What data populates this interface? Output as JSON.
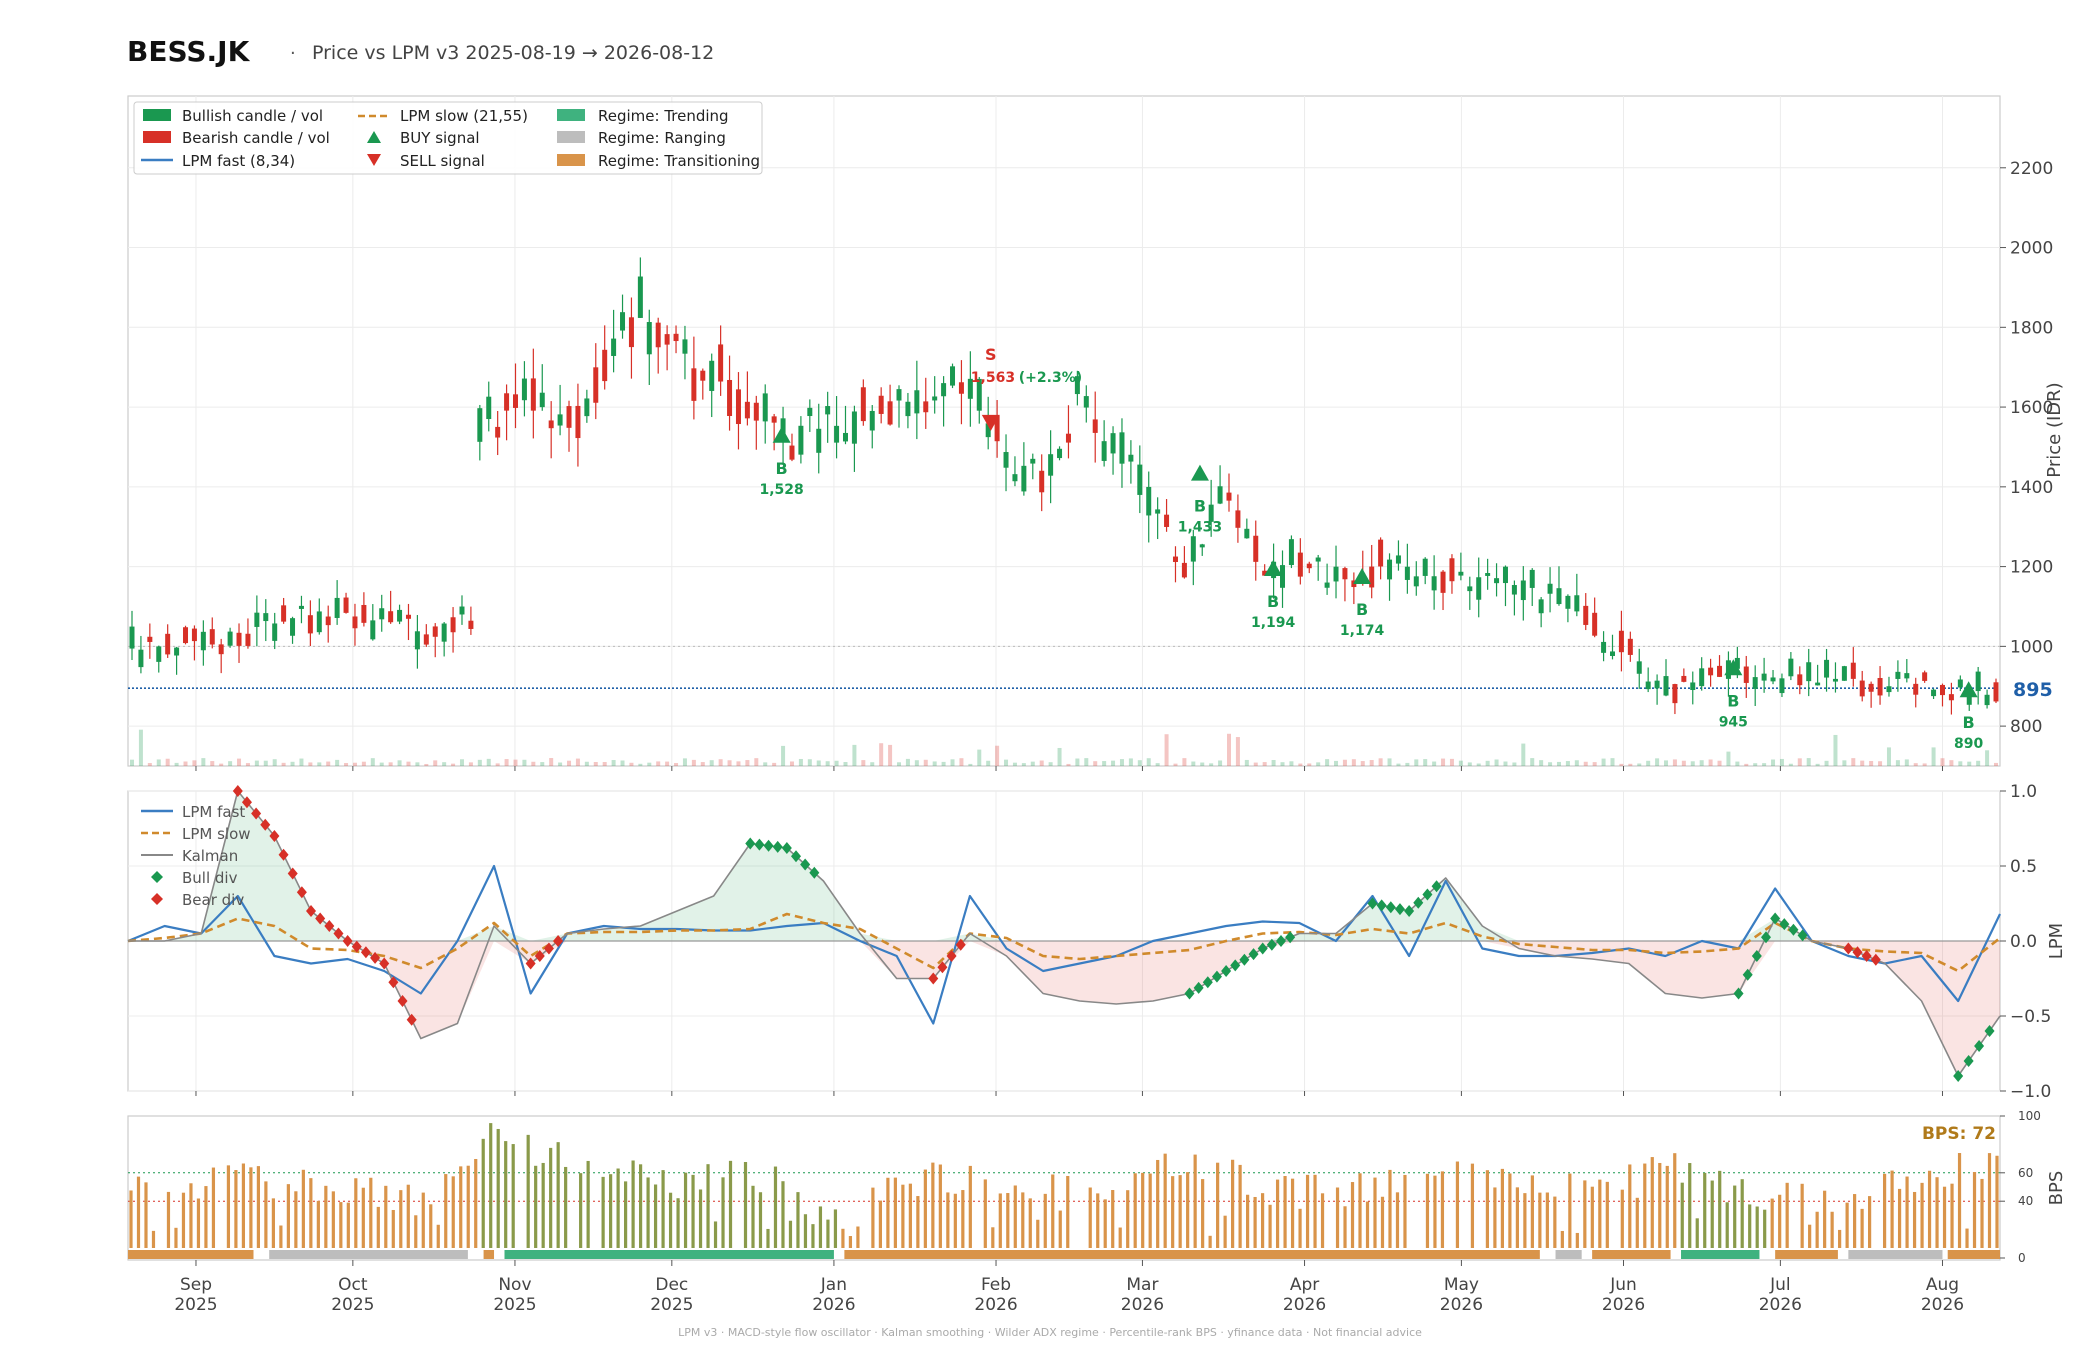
{
  "header": {
    "ticker": "BESS.JK",
    "separator": "·",
    "subtitle": "Price vs LPM v3  2025-08-19 → 2026-08-12"
  },
  "footer": {
    "text": "LPM v3  ·  MACD-style flow oscillator  ·  Kalman smoothing  ·  Wilder ADX regime  ·  Percentile-rank BPS  ·  yfinance data  ·  Not financial advice"
  },
  "colors": {
    "bullish": "#1a9850",
    "bearish": "#d73027",
    "lpm_fast": "#3a7dc2",
    "lpm_slow": "#d08a2c",
    "kalman": "#888888",
    "trending": "#3fb27f",
    "ranging": "#bdbdbd",
    "transitioning": "#d9944a",
    "bps_label": "#b07a1a",
    "last_price": "#1f5fa8"
  },
  "chart_data": [
    {
      "type": "candlestick",
      "panel": "price",
      "ylabel": "Price (IDR)",
      "ylim": [
        700,
        2380
      ],
      "yticks": [
        800,
        1000,
        1200,
        1400,
        1600,
        1800,
        2000,
        2200
      ],
      "last_price_label": "895",
      "last_price": 895,
      "reference_line": 1000,
      "legend": {
        "position": "top-left",
        "entries": [
          {
            "label": "Bullish candle / vol",
            "kind": "patch",
            "color": "#1a9850"
          },
          {
            "label": "Bearish candle / vol",
            "kind": "patch",
            "color": "#d73027"
          },
          {
            "label": "LPM fast (8,34)",
            "kind": "line",
            "color": "#3a7dc2"
          },
          {
            "label": "LPM slow (21,55)",
            "kind": "dashed",
            "color": "#d08a2c"
          },
          {
            "label": "BUY signal",
            "kind": "up",
            "color": "#1a9850"
          },
          {
            "label": "SELL signal",
            "kind": "down",
            "color": "#d73027"
          },
          {
            "label": "Regime: Trending",
            "kind": "patch",
            "color": "#3fb27f"
          },
          {
            "label": "Regime: Ranging",
            "kind": "patch",
            "color": "#bdbdbd"
          },
          {
            "label": "Regime: Transitioning",
            "kind": "patch",
            "color": "#d9944a"
          }
        ]
      },
      "signals": [
        {
          "type": "BUY",
          "date": "2025-12-22",
          "price": 1528,
          "letter": "B",
          "label": "1,528"
        },
        {
          "type": "SELL",
          "date": "2026-01-31",
          "price": 1563,
          "letter": "S",
          "label": "1,563 (+2.3%)"
        },
        {
          "type": "BUY",
          "date": "2026-03-12",
          "price": 1433,
          "letter": "B",
          "label": "1,433"
        },
        {
          "type": "BUY",
          "date": "2026-03-26",
          "price": 1194,
          "letter": "B",
          "label": "1,194"
        },
        {
          "type": "BUY",
          "date": "2026-04-12",
          "price": 1174,
          "letter": "B",
          "label": "1,174"
        },
        {
          "type": "BUY",
          "date": "2026-06-22",
          "price": 945,
          "letter": "B",
          "label": "945"
        },
        {
          "type": "BUY",
          "date": "2026-08-06",
          "price": 890,
          "letter": "B",
          "label": "890"
        }
      ],
      "price_path": [
        [
          "2025-08-19",
          1000
        ],
        [
          "2025-08-26",
          990
        ],
        [
          "2025-09-02",
          1010
        ],
        [
          "2025-09-09",
          1030
        ],
        [
          "2025-09-16",
          1060
        ],
        [
          "2025-09-23",
          1080
        ],
        [
          "2025-09-30",
          1075
        ],
        [
          "2025-10-07",
          1055
        ],
        [
          "2025-10-14",
          1045
        ],
        [
          "2025-10-21",
          1060
        ],
        [
          "2025-10-24",
          1070
        ],
        [
          "2025-10-25",
          1600
        ],
        [
          "2025-10-28",
          1560
        ],
        [
          "2025-11-04",
          1620
        ],
        [
          "2025-11-11",
          1560
        ],
        [
          "2025-11-18",
          1700
        ],
        [
          "2025-11-25",
          1840
        ],
        [
          "2025-12-02",
          1720
        ],
        [
          "2025-12-09",
          1680
        ],
        [
          "2025-12-16",
          1620
        ],
        [
          "2025-12-23",
          1510
        ],
        [
          "2025-12-30",
          1570
        ],
        [
          "2026-01-06",
          1560
        ],
        [
          "2026-01-13",
          1620
        ],
        [
          "2026-01-20",
          1650
        ],
        [
          "2026-01-27",
          1640
        ],
        [
          "2026-02-03",
          1480
        ],
        [
          "2026-02-10",
          1420
        ],
        [
          "2026-02-17",
          1620
        ],
        [
          "2026-02-24",
          1490
        ],
        [
          "2026-03-03",
          1360
        ],
        [
          "2026-03-10",
          1190
        ],
        [
          "2026-03-17",
          1420
        ],
        [
          "2026-03-24",
          1200
        ],
        [
          "2026-03-31",
          1220
        ],
        [
          "2026-04-07",
          1150
        ],
        [
          "2026-04-14",
          1210
        ],
        [
          "2026-04-21",
          1200
        ],
        [
          "2026-04-28",
          1160
        ],
        [
          "2026-05-05",
          1150
        ],
        [
          "2026-05-12",
          1150
        ],
        [
          "2026-05-19",
          1120
        ],
        [
          "2026-05-26",
          1050
        ],
        [
          "2026-06-02",
          980
        ],
        [
          "2026-06-09",
          880
        ],
        [
          "2026-06-16",
          920
        ],
        [
          "2026-06-23",
          940
        ],
        [
          "2026-06-30",
          920
        ],
        [
          "2026-07-07",
          935
        ],
        [
          "2026-07-14",
          920
        ],
        [
          "2026-07-21",
          910
        ],
        [
          "2026-07-28",
          905
        ],
        [
          "2026-08-04",
          880
        ],
        [
          "2026-08-12",
          895
        ]
      ]
    },
    {
      "type": "line",
      "panel": "oscillator",
      "ylabel": "LPM",
      "ylim": [
        -1.0,
        1.0
      ],
      "yticks": [
        -1.0,
        -0.5,
        0.0,
        0.5,
        1.0
      ],
      "legend": {
        "position": "top-left",
        "entries": [
          {
            "label": "LPM fast",
            "kind": "line",
            "color": "#3a7dc2"
          },
          {
            "label": "LPM slow",
            "kind": "dashed",
            "color": "#d08a2c"
          },
          {
            "label": "Kalman",
            "kind": "line",
            "color": "#888888"
          },
          {
            "label": "Bull div",
            "kind": "diamond",
            "color": "#1a9850"
          },
          {
            "label": "Bear div",
            "kind": "diamond",
            "color": "#d73027"
          }
        ]
      },
      "x": [
        "2025-08-19",
        "2025-08-26",
        "2025-09-02",
        "2025-09-09",
        "2025-09-16",
        "2025-09-23",
        "2025-09-30",
        "2025-10-07",
        "2025-10-14",
        "2025-10-21",
        "2025-10-28",
        "2025-11-04",
        "2025-11-11",
        "2025-11-18",
        "2025-11-25",
        "2025-12-02",
        "2025-12-09",
        "2025-12-16",
        "2025-12-23",
        "2025-12-30",
        "2026-01-06",
        "2026-01-13",
        "2026-01-20",
        "2026-01-27",
        "2026-02-03",
        "2026-02-10",
        "2026-02-17",
        "2026-02-24",
        "2026-03-03",
        "2026-03-10",
        "2026-03-17",
        "2026-03-24",
        "2026-03-31",
        "2026-04-07",
        "2026-04-14",
        "2026-04-21",
        "2026-04-28",
        "2026-05-05",
        "2026-05-12",
        "2026-05-19",
        "2026-05-26",
        "2026-06-02",
        "2026-06-09",
        "2026-06-16",
        "2026-06-23",
        "2026-06-30",
        "2026-07-07",
        "2026-07-14",
        "2026-07-21",
        "2026-07-28",
        "2026-08-04",
        "2026-08-12"
      ],
      "series": [
        {
          "name": "LPM fast",
          "values": [
            0.0,
            0.1,
            0.05,
            0.3,
            -0.1,
            -0.15,
            -0.12,
            -0.2,
            -0.35,
            0.0,
            0.5,
            -0.35,
            0.05,
            0.1,
            0.08,
            0.08,
            0.07,
            0.07,
            0.1,
            0.12,
            0.0,
            -0.1,
            -0.55,
            0.3,
            -0.05,
            -0.2,
            -0.15,
            -0.1,
            0.0,
            0.05,
            0.1,
            0.13,
            0.12,
            0.0,
            0.3,
            -0.1,
            0.4,
            -0.05,
            -0.1,
            -0.1,
            -0.08,
            -0.05,
            -0.1,
            0.0,
            -0.05,
            0.35,
            0.0,
            -0.1,
            -0.15,
            -0.1,
            -0.4,
            0.18
          ]
        },
        {
          "name": "LPM slow",
          "values": [
            0.0,
            0.02,
            0.05,
            0.15,
            0.1,
            -0.05,
            -0.06,
            -0.1,
            -0.18,
            -0.05,
            0.12,
            -0.1,
            0.05,
            0.06,
            0.06,
            0.07,
            0.07,
            0.08,
            0.18,
            0.12,
            0.08,
            -0.05,
            -0.18,
            0.05,
            0.02,
            -0.1,
            -0.12,
            -0.1,
            -0.08,
            -0.06,
            0.0,
            0.05,
            0.06,
            0.04,
            0.08,
            0.05,
            0.12,
            0.03,
            -0.02,
            -0.04,
            -0.06,
            -0.06,
            -0.08,
            -0.07,
            -0.05,
            0.12,
            0.0,
            -0.05,
            -0.07,
            -0.08,
            -0.2,
            0.02
          ]
        },
        {
          "name": "Kalman",
          "values": [
            0.0,
            0.0,
            0.05,
            1.0,
            0.7,
            0.2,
            0.0,
            -0.15,
            -0.65,
            -0.55,
            0.1,
            -0.15,
            0.05,
            0.08,
            0.1,
            0.2,
            0.3,
            0.65,
            0.62,
            0.4,
            0.05,
            -0.25,
            -0.25,
            0.05,
            -0.1,
            -0.35,
            -0.4,
            -0.42,
            -0.4,
            -0.35,
            -0.2,
            -0.05,
            0.05,
            0.05,
            0.25,
            0.2,
            0.42,
            0.1,
            -0.05,
            -0.1,
            -0.12,
            -0.15,
            -0.35,
            -0.38,
            -0.35,
            0.15,
            0.0,
            -0.05,
            -0.15,
            -0.4,
            -0.9,
            -0.5
          ]
        }
      ]
    },
    {
      "type": "bar",
      "panel": "bps",
      "ylabel": "BPS",
      "ylim": [
        0,
        100
      ],
      "yticks": [
        0,
        40,
        60,
        100
      ],
      "current_label": "BPS: 72",
      "current": 72,
      "threshold_high": 60,
      "threshold_low": 40,
      "regime_bands": [
        {
          "start": "2025-08-19",
          "end": "2025-09-12",
          "regime": "Transitioning"
        },
        {
          "start": "2025-09-15",
          "end": "2025-10-23",
          "regime": "Ranging"
        },
        {
          "start": "2025-10-26",
          "end": "2025-10-28",
          "regime": "Transitioning"
        },
        {
          "start": "2025-10-30",
          "end": "2026-01-01",
          "regime": "Trending"
        },
        {
          "start": "2026-01-03",
          "end": "2026-05-16",
          "regime": "Transitioning"
        },
        {
          "start": "2026-05-19",
          "end": "2026-05-24",
          "regime": "Ranging"
        },
        {
          "start": "2026-05-26",
          "end": "2026-06-10",
          "regime": "Transitioning"
        },
        {
          "start": "2026-06-12",
          "end": "2026-06-27",
          "regime": "Trending"
        },
        {
          "start": "2026-06-30",
          "end": "2026-07-12",
          "regime": "Transitioning"
        },
        {
          "start": "2026-07-14",
          "end": "2026-08-01",
          "regime": "Ranging"
        },
        {
          "start": "2026-08-02",
          "end": "2026-08-12",
          "regime": "Transitioning"
        }
      ],
      "bps_path": [
        [
          "2025-08-19",
          50
        ],
        [
          "2025-09-01",
          52
        ],
        [
          "2025-09-15",
          55
        ],
        [
          "2025-10-01",
          50
        ],
        [
          "2025-10-15",
          35
        ],
        [
          "2025-10-25",
          85
        ],
        [
          "2025-11-10",
          68
        ],
        [
          "2025-12-01",
          52
        ],
        [
          "2025-12-20",
          58
        ],
        [
          "2026-01-01",
          25
        ],
        [
          "2026-01-20",
          60
        ],
        [
          "2026-02-15",
          45
        ],
        [
          "2026-03-10",
          65
        ],
        [
          "2026-03-31",
          45
        ],
        [
          "2026-04-20",
          55
        ],
        [
          "2026-05-10",
          60
        ],
        [
          "2026-05-25",
          45
        ],
        [
          "2026-06-10",
          62
        ],
        [
          "2026-06-25",
          42
        ],
        [
          "2026-07-15",
          45
        ],
        [
          "2026-08-01",
          60
        ],
        [
          "2026-08-12",
          72
        ]
      ]
    }
  ],
  "x_axis": {
    "ticks": [
      {
        "date": "2025-09-01",
        "month": "Sep",
        "year": "2025"
      },
      {
        "date": "2025-10-01",
        "month": "Oct",
        "year": "2025"
      },
      {
        "date": "2025-11-01",
        "month": "Nov",
        "year": "2025"
      },
      {
        "date": "2025-12-01",
        "month": "Dec",
        "year": "2025"
      },
      {
        "date": "2026-01-01",
        "month": "Jan",
        "year": "2026"
      },
      {
        "date": "2026-02-01",
        "month": "Feb",
        "year": "2026"
      },
      {
        "date": "2026-03-01",
        "month": "Mar",
        "year": "2026"
      },
      {
        "date": "2026-04-01",
        "month": "Apr",
        "year": "2026"
      },
      {
        "date": "2026-05-01",
        "month": "May",
        "year": "2026"
      },
      {
        "date": "2026-06-01",
        "month": "Jun",
        "year": "2026"
      },
      {
        "date": "2026-07-01",
        "month": "Jul",
        "year": "2026"
      },
      {
        "date": "2026-08-01",
        "month": "Aug",
        "year": "2026"
      }
    ],
    "start": "2025-08-19",
    "end": "2026-08-12"
  }
}
